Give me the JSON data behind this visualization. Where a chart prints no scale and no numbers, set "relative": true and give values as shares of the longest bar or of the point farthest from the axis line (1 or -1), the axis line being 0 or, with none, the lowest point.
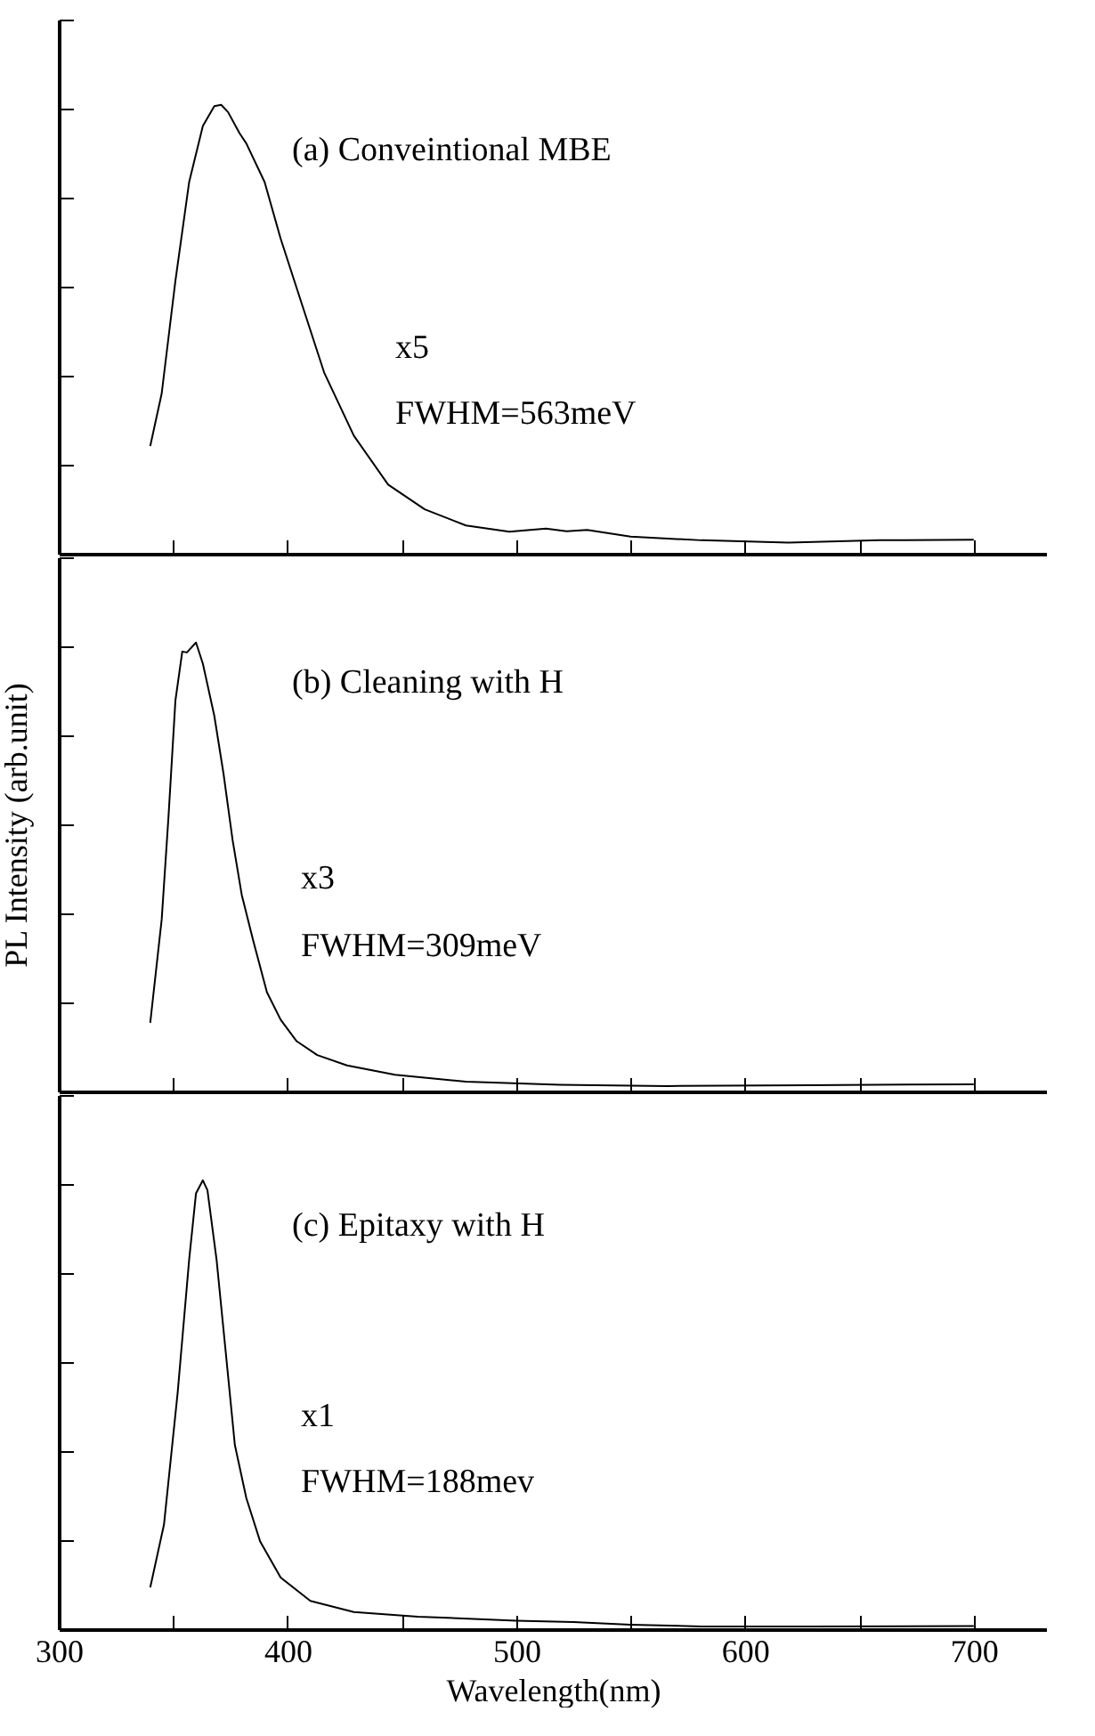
{
  "chart_data": [
    {
      "type": "line",
      "relative": true,
      "tick_labels": false,
      "xlim": [
        300,
        732
      ],
      "xticks": [
        300,
        {
          "value": 350,
          "label": null
        },
        400,
        {
          "value": 450,
          "label": null
        },
        500,
        {
          "value": 550,
          "label": null
        },
        600,
        {
          "value": 650,
          "label": null
        },
        700
      ],
      "x": [
        340,
        345,
        351,
        357,
        363,
        368,
        371,
        374,
        379,
        382,
        390,
        397,
        404,
        416,
        429,
        444,
        460,
        478,
        497,
        513,
        522,
        531,
        550,
        581,
        619,
        659,
        700
      ],
      "series": [
        {
          "color": "#000000",
          "values": [
            0.24,
            0.357,
            0.608,
            0.828,
            0.953,
            0.997,
            1.0,
            0.984,
            0.937,
            0.914,
            0.828,
            0.702,
            0.592,
            0.404,
            0.263,
            0.154,
            0.099,
            0.063,
            0.049,
            0.056,
            0.05,
            0.053,
            0.038,
            0.03,
            0.025,
            0.03,
            0.031
          ]
        }
      ],
      "annotations": [
        "(a) Conveintional MBE",
        "x5",
        "FWHM=563meV"
      ]
    },
    {
      "type": "line",
      "relative": true,
      "tick_labels": false,
      "ylabel": "PL Intensity (arb.unit)",
      "xlim": [
        300,
        732
      ],
      "xticks": [
        300,
        {
          "value": 350,
          "label": null
        },
        400,
        {
          "value": 450,
          "label": null
        },
        500,
        {
          "value": 550,
          "label": null
        },
        600,
        {
          "value": 650,
          "label": null
        },
        700
      ],
      "x": [
        340,
        345,
        348,
        351,
        354,
        356,
        360,
        363,
        368,
        372,
        376,
        380,
        385,
        391,
        397,
        404,
        413,
        426,
        447,
        478,
        519,
        566,
        628,
        700
      ],
      "series": [
        {
          "color": "#000000",
          "values": [
            0.153,
            0.383,
            0.614,
            0.871,
            0.98,
            0.978,
            1.0,
            0.953,
            0.837,
            0.709,
            0.56,
            0.438,
            0.336,
            0.221,
            0.16,
            0.112,
            0.081,
            0.058,
            0.037,
            0.022,
            0.015,
            0.012,
            0.014,
            0.016
          ]
        }
      ],
      "annotations": [
        "(b) Cleaning with H",
        "x3",
        "FWHM=309meV"
      ]
    },
    {
      "type": "line",
      "relative": true,
      "tick_labels": "x",
      "xlabel": "Wavelength(nm)",
      "xlim": [
        300,
        732
      ],
      "xticks": [
        300,
        {
          "value": 350,
          "label": null
        },
        400,
        {
          "value": 450,
          "label": null
        },
        500,
        {
          "value": 550,
          "label": null
        },
        600,
        {
          "value": 650,
          "label": null
        },
        700
      ],
      "x": [
        340,
        346,
        352,
        357,
        360,
        363,
        365,
        369,
        373,
        377,
        382,
        388,
        397,
        410,
        429,
        457,
        500,
        525,
        550,
        581,
        628,
        700
      ],
      "series": [
        {
          "color": "#000000",
          "values": [
            0.093,
            0.233,
            0.528,
            0.823,
            0.971,
            1.0,
            0.978,
            0.823,
            0.617,
            0.41,
            0.292,
            0.196,
            0.115,
            0.063,
            0.038,
            0.028,
            0.019,
            0.016,
            0.01,
            0.006,
            0.006,
            0.007
          ]
        }
      ],
      "annotations": [
        "(c) Epitaxy with H",
        "x1",
        "FWHM=188mev"
      ]
    }
  ]
}
